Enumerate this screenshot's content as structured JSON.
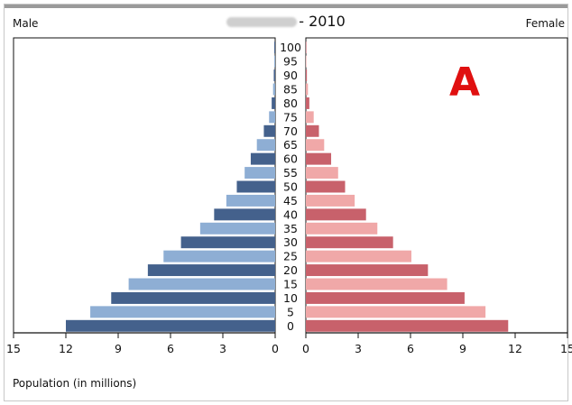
{
  "header": {
    "left_label": "Male",
    "right_label": "Female",
    "title_text": "- 2010"
  },
  "annotation": {
    "marker": "A",
    "color": "#e01010"
  },
  "chart_data": {
    "type": "bar",
    "orientation": "horizontal-population-pyramid",
    "xlabel": "Population (in millions)",
    "age_groups": [
      "100",
      "95",
      "90",
      "85",
      "80",
      "75",
      "70",
      "65",
      "60",
      "55",
      "50",
      "45",
      "40",
      "35",
      "30",
      "25",
      "20",
      "15",
      "10",
      "5",
      "0"
    ],
    "series": [
      {
        "name": "Male",
        "side": "left",
        "values": [
          0.05,
          0.05,
          0.08,
          0.12,
          0.2,
          0.35,
          0.65,
          1.05,
          1.4,
          1.75,
          2.2,
          2.8,
          3.5,
          4.3,
          5.4,
          6.4,
          7.3,
          8.4,
          9.4,
          10.6,
          12.0
        ],
        "colors": [
          "#44618c",
          "#8eaed4"
        ]
      },
      {
        "name": "Female",
        "side": "right",
        "values": [
          0.03,
          0.03,
          0.06,
          0.12,
          0.2,
          0.45,
          0.75,
          1.05,
          1.45,
          1.85,
          2.25,
          2.8,
          3.45,
          4.1,
          5.0,
          6.05,
          7.0,
          8.1,
          9.1,
          10.3,
          11.6
        ],
        "colors": [
          "#c8616b",
          "#f0a8a8"
        ]
      }
    ],
    "left_ticks": [
      "15",
      "12",
      "9",
      "6",
      "3",
      "0"
    ],
    "right_ticks": [
      "0",
      "3",
      "6",
      "9",
      "12",
      "15"
    ],
    "xlim": [
      0,
      15
    ]
  }
}
